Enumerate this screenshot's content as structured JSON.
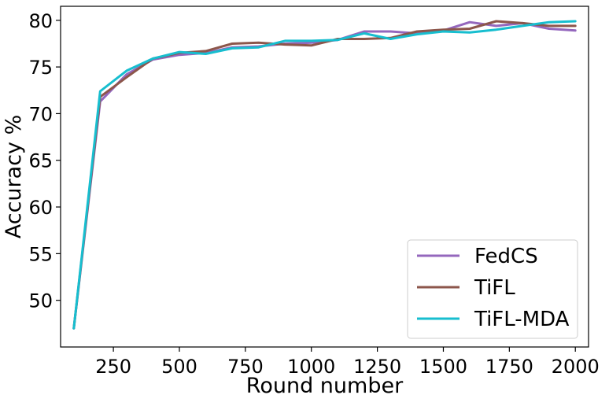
{
  "chart_data": {
    "type": "line",
    "title": "",
    "xlabel": "Round number",
    "ylabel": "Accuracy %",
    "xlim": [
      50,
      2050
    ],
    "ylim": [
      45,
      81.5
    ],
    "x_ticks": [
      250,
      500,
      750,
      1000,
      1250,
      1500,
      1750,
      2000
    ],
    "y_ticks": [
      50,
      55,
      60,
      65,
      70,
      75,
      80
    ],
    "grid": false,
    "legend_position": "bottom-right",
    "x": [
      100,
      200,
      300,
      400,
      500,
      600,
      700,
      800,
      900,
      1000,
      1100,
      1200,
      1300,
      1400,
      1500,
      1600,
      1700,
      1800,
      1900,
      2000
    ],
    "series": [
      {
        "name": "FedCS",
        "color": "#9467bd",
        "values": [
          47.0,
          71.3,
          74.2,
          75.8,
          76.3,
          76.5,
          77.1,
          77.2,
          77.5,
          77.6,
          77.9,
          78.8,
          78.8,
          78.6,
          78.9,
          79.8,
          79.4,
          79.7,
          79.1,
          78.9
        ]
      },
      {
        "name": "TiFL",
        "color": "#8c564b",
        "values": [
          47.0,
          71.8,
          73.9,
          75.9,
          76.5,
          76.7,
          77.5,
          77.6,
          77.4,
          77.3,
          78.0,
          78.0,
          78.1,
          78.8,
          79.0,
          79.1,
          79.9,
          79.7,
          79.4,
          79.4
        ]
      },
      {
        "name": "TiFL-MDA",
        "color": "#17becf",
        "values": [
          47.0,
          72.4,
          74.6,
          75.9,
          76.6,
          76.4,
          77.0,
          77.1,
          77.8,
          77.8,
          77.9,
          78.6,
          78.0,
          78.5,
          78.8,
          78.7,
          79.0,
          79.4,
          79.8,
          79.9
        ]
      }
    ]
  }
}
